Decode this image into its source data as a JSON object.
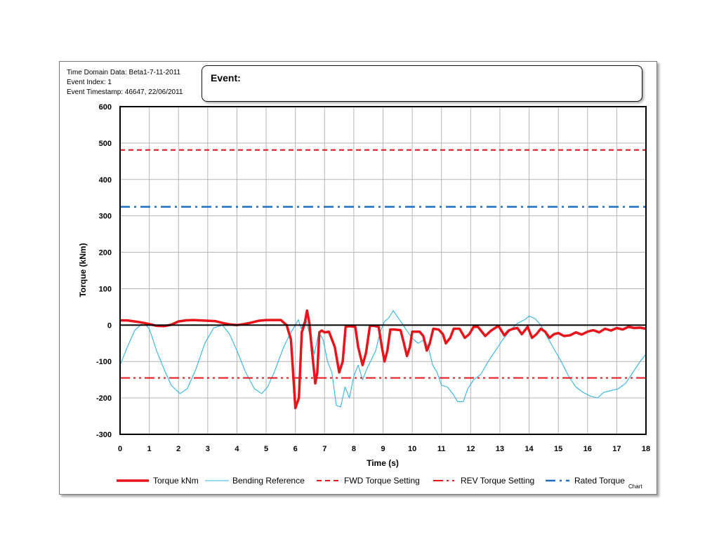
{
  "header": {
    "line1": "Time Domain Data: Beta1-7-11-2011",
    "line2": "Event Index: 1",
    "line3": "Event Timestamp: 46647, 22/06/2011",
    "event_label": "Event:"
  },
  "chart_data": {
    "type": "line",
    "xlabel": "Time (s)",
    "ylabel": "Torque (kNm)",
    "xlim": [
      0,
      18
    ],
    "ylim": [
      -300,
      600
    ],
    "xticks": [
      0,
      1,
      2,
      3,
      4,
      5,
      6,
      7,
      8,
      9,
      10,
      11,
      12,
      13,
      14,
      15,
      16,
      17,
      18
    ],
    "yticks": [
      -300,
      -200,
      -100,
      0,
      100,
      200,
      300,
      400,
      500,
      600
    ],
    "grid": true,
    "legend_position": "bottom",
    "corner_label": "Chart",
    "series": [
      {
        "name": "Torque kNm",
        "color": "#e8141b",
        "style": "solid",
        "points": [
          [
            0,
            13
          ],
          [
            0.25,
            13
          ],
          [
            0.5,
            10
          ],
          [
            0.75,
            7
          ],
          [
            1,
            3
          ],
          [
            1.25,
            -2
          ],
          [
            1.5,
            -3
          ],
          [
            1.75,
            1
          ],
          [
            2,
            10
          ],
          [
            2.25,
            13
          ],
          [
            2.5,
            14
          ],
          [
            2.75,
            13
          ],
          [
            3,
            12
          ],
          [
            3.25,
            11
          ],
          [
            3.5,
            6
          ],
          [
            3.75,
            2
          ],
          [
            4,
            0
          ],
          [
            4.25,
            3
          ],
          [
            4.5,
            7
          ],
          [
            4.75,
            12
          ],
          [
            5,
            14
          ],
          [
            5.25,
            14
          ],
          [
            5.5,
            14
          ],
          [
            5.7,
            0
          ],
          [
            5.85,
            -40
          ],
          [
            6,
            -228
          ],
          [
            6.12,
            -200
          ],
          [
            6.22,
            -20
          ],
          [
            6.32,
            5
          ],
          [
            6.4,
            40
          ],
          [
            6.48,
            5
          ],
          [
            6.58,
            -80
          ],
          [
            6.68,
            -160
          ],
          [
            6.75,
            -130
          ],
          [
            6.82,
            -20
          ],
          [
            6.9,
            -15
          ],
          [
            7.0,
            -20
          ],
          [
            7.15,
            -18
          ],
          [
            7.35,
            -60
          ],
          [
            7.5,
            -130
          ],
          [
            7.62,
            -100
          ],
          [
            7.72,
            -5
          ],
          [
            7.85,
            -3
          ],
          [
            8.05,
            -5
          ],
          [
            8.15,
            -60
          ],
          [
            8.3,
            -110
          ],
          [
            8.42,
            -75
          ],
          [
            8.55,
            -2
          ],
          [
            8.7,
            -2
          ],
          [
            8.85,
            -5
          ],
          [
            8.95,
            -55
          ],
          [
            9.05,
            -100
          ],
          [
            9.15,
            -70
          ],
          [
            9.25,
            -12
          ],
          [
            9.4,
            -12
          ],
          [
            9.6,
            -14
          ],
          [
            9.7,
            -45
          ],
          [
            9.82,
            -85
          ],
          [
            9.92,
            -60
          ],
          [
            10.0,
            -18
          ],
          [
            10.25,
            -18
          ],
          [
            10.38,
            -30
          ],
          [
            10.5,
            -70
          ],
          [
            10.6,
            -50
          ],
          [
            10.72,
            -10
          ],
          [
            10.9,
            -12
          ],
          [
            11.05,
            -25
          ],
          [
            11.15,
            -50
          ],
          [
            11.3,
            -35
          ],
          [
            11.42,
            -10
          ],
          [
            11.62,
            -10
          ],
          [
            11.8,
            -35
          ],
          [
            11.95,
            -25
          ],
          [
            12.1,
            -5
          ],
          [
            12.25,
            -5
          ],
          [
            12.5,
            -30
          ],
          [
            12.7,
            -15
          ],
          [
            12.95,
            -2
          ],
          [
            13.15,
            -28
          ],
          [
            13.3,
            -15
          ],
          [
            13.45,
            -10
          ],
          [
            13.6,
            -8
          ],
          [
            13.75,
            -25
          ],
          [
            13.85,
            -15
          ],
          [
            13.95,
            -5
          ],
          [
            14.1,
            -35
          ],
          [
            14.25,
            -25
          ],
          [
            14.4,
            -10
          ],
          [
            14.55,
            -18
          ],
          [
            14.7,
            -35
          ],
          [
            14.85,
            -25
          ],
          [
            15.0,
            -22
          ],
          [
            15.2,
            -30
          ],
          [
            15.4,
            -28
          ],
          [
            15.6,
            -20
          ],
          [
            15.8,
            -26
          ],
          [
            16.0,
            -18
          ],
          [
            16.2,
            -14
          ],
          [
            16.4,
            -20
          ],
          [
            16.6,
            -10
          ],
          [
            16.8,
            -15
          ],
          [
            17.0,
            -8
          ],
          [
            17.2,
            -12
          ],
          [
            17.4,
            -5
          ],
          [
            17.6,
            -8
          ],
          [
            17.8,
            -7
          ],
          [
            18,
            -10
          ]
        ]
      },
      {
        "name": "Bending Reference",
        "color": "#31b4e6",
        "style": "solid",
        "points": [
          [
            0,
            -110
          ],
          [
            0.25,
            -60
          ],
          [
            0.5,
            -15
          ],
          [
            0.8,
            8
          ],
          [
            1.0,
            -10
          ],
          [
            1.25,
            -70
          ],
          [
            1.5,
            -120
          ],
          [
            1.75,
            -165
          ],
          [
            2.05,
            -188
          ],
          [
            2.3,
            -175
          ],
          [
            2.6,
            -120
          ],
          [
            2.9,
            -50
          ],
          [
            3.2,
            -8
          ],
          [
            3.5,
            0
          ],
          [
            3.75,
            -25
          ],
          [
            4.0,
            -70
          ],
          [
            4.3,
            -130
          ],
          [
            4.6,
            -175
          ],
          [
            4.85,
            -188
          ],
          [
            5.05,
            -170
          ],
          [
            5.3,
            -125
          ],
          [
            5.6,
            -60
          ],
          [
            5.85,
            -20
          ],
          [
            6.0,
            0
          ],
          [
            6.1,
            15
          ],
          [
            6.2,
            -10
          ],
          [
            6.35,
            20
          ],
          [
            6.5,
            -30
          ],
          [
            6.65,
            -80
          ],
          [
            6.8,
            -20
          ],
          [
            6.95,
            -40
          ],
          [
            7.1,
            -100
          ],
          [
            7.25,
            -130
          ],
          [
            7.4,
            -220
          ],
          [
            7.55,
            -225
          ],
          [
            7.7,
            -170
          ],
          [
            7.85,
            -200
          ],
          [
            8.0,
            -140
          ],
          [
            8.15,
            -110
          ],
          [
            8.3,
            -150
          ],
          [
            8.45,
            -120
          ],
          [
            8.6,
            -95
          ],
          [
            8.75,
            -70
          ],
          [
            8.9,
            -20
          ],
          [
            9.05,
            10
          ],
          [
            9.2,
            20
          ],
          [
            9.35,
            40
          ],
          [
            9.5,
            22
          ],
          [
            9.65,
            5
          ],
          [
            9.85,
            -20
          ],
          [
            10.05,
            -40
          ],
          [
            10.2,
            -50
          ],
          [
            10.4,
            -40
          ],
          [
            10.55,
            -60
          ],
          [
            10.7,
            -110
          ],
          [
            10.85,
            -130
          ],
          [
            11.0,
            -165
          ],
          [
            11.2,
            -170
          ],
          [
            11.4,
            -190
          ],
          [
            11.55,
            -210
          ],
          [
            11.75,
            -210
          ],
          [
            11.9,
            -175
          ],
          [
            12.1,
            -150
          ],
          [
            12.35,
            -135
          ],
          [
            12.6,
            -100
          ],
          [
            12.85,
            -70
          ],
          [
            13.1,
            -40
          ],
          [
            13.35,
            -15
          ],
          [
            13.6,
            5
          ],
          [
            13.85,
            15
          ],
          [
            14.0,
            25
          ],
          [
            14.2,
            18
          ],
          [
            14.4,
            0
          ],
          [
            14.6,
            -30
          ],
          [
            14.85,
            -65
          ],
          [
            15.1,
            -100
          ],
          [
            15.35,
            -140
          ],
          [
            15.6,
            -170
          ],
          [
            15.85,
            -185
          ],
          [
            16.1,
            -195
          ],
          [
            16.35,
            -200
          ],
          [
            16.55,
            -185
          ],
          [
            16.8,
            -180
          ],
          [
            17.05,
            -175
          ],
          [
            17.3,
            -160
          ],
          [
            17.55,
            -130
          ],
          [
            17.8,
            -100
          ],
          [
            18,
            -80
          ]
        ]
      },
      {
        "name": "FWD Torque Setting",
        "color": "#e8141b",
        "style": "dash",
        "constant": 481
      },
      {
        "name": "REV Torque Setting",
        "color": "#e8141b",
        "style": "dash-dot-dot",
        "constant": -145
      },
      {
        "name": "Rated Torque",
        "color": "#1f6fc1",
        "style": "dash-dot",
        "constant": 325
      }
    ]
  }
}
